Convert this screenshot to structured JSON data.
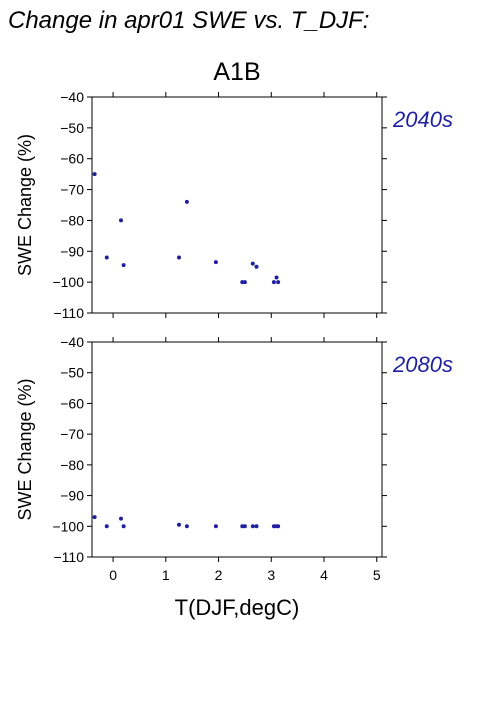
{
  "figure": {
    "title": "Change in apr01 SWE vs. T_DJF:",
    "subtitle": "A1B",
    "xlabel": "T(DJF,degC)"
  },
  "colors": {
    "points": "#1f1fa0",
    "period_label": "#1f1fa0"
  },
  "chart_data": [
    {
      "type": "scatter",
      "period_label": "2040s",
      "ylabel": "SWE Change (%)",
      "xlim": [
        -0.4,
        5.1
      ],
      "ylim": [
        -110,
        -40
      ],
      "xticks": [
        0,
        1,
        2,
        3,
        4,
        5
      ],
      "yticks": [
        -40,
        -50,
        -60,
        -70,
        -80,
        -90,
        -100,
        -110
      ],
      "xtick_labels_shown": false,
      "grid": false,
      "x": [
        -0.35,
        -0.12,
        0.15,
        0.2,
        1.25,
        1.4,
        1.95,
        2.45,
        2.5,
        2.65,
        2.72,
        3.05,
        3.1,
        3.13
      ],
      "y": [
        -65,
        -92,
        -80,
        -94.5,
        -92,
        -74,
        -93.5,
        -100,
        -100,
        -94,
        -95,
        -100,
        -98.5,
        -100
      ]
    },
    {
      "type": "scatter",
      "period_label": "2080s",
      "ylabel": "SWE Change (%)",
      "xlim": [
        -0.4,
        5.1
      ],
      "ylim": [
        -110,
        -40
      ],
      "xticks": [
        0,
        1,
        2,
        3,
        4,
        5
      ],
      "xtick_labels": [
        "0",
        "1",
        "2",
        "3",
        "4",
        "5"
      ],
      "yticks": [
        -40,
        -50,
        -60,
        -70,
        -80,
        -90,
        -100,
        -110
      ],
      "xtick_labels_shown": true,
      "grid": false,
      "x": [
        -0.35,
        -0.12,
        0.15,
        0.2,
        1.25,
        1.4,
        1.95,
        2.45,
        2.5,
        2.65,
        2.72,
        3.05,
        3.1,
        3.13
      ],
      "y": [
        -97,
        -100,
        -97.5,
        -100,
        -99.5,
        -100,
        -100,
        -100,
        -100,
        -100,
        -100,
        -100,
        -100,
        -100
      ]
    }
  ]
}
